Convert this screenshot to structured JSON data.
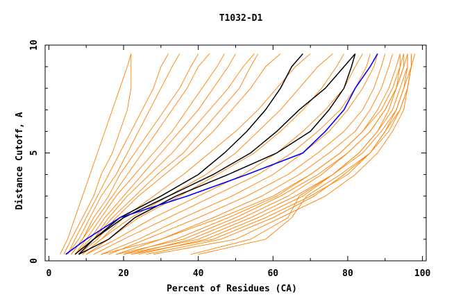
{
  "chart_data": {
    "type": "line",
    "title": "T1032-D1",
    "xlabel": "Percent of Residues (CA)",
    "ylabel": "Distance Cutoff, A",
    "xlim": [
      -1,
      101
    ],
    "ylim": [
      0,
      10
    ],
    "xticks": [
      0,
      20,
      40,
      60,
      80,
      100
    ],
    "yticks": [
      0,
      5,
      10
    ],
    "grid": false,
    "y_levels": [
      0.3,
      1,
      2,
      3,
      4,
      5,
      6,
      7,
      8,
      9,
      9.6
    ],
    "colors": {
      "other": "#ff8000",
      "highlight": "#000000",
      "best": "#0000ff"
    },
    "orange_series": [
      [
        3,
        5,
        7,
        9,
        11,
        13,
        15,
        17,
        19,
        21,
        22
      ],
      [
        4,
        6,
        9,
        12,
        14,
        17,
        19,
        21,
        22,
        22,
        22
      ],
      [
        5,
        7,
        10,
        13,
        16,
        19,
        22,
        25,
        28,
        30,
        32
      ],
      [
        5,
        8,
        11,
        14,
        18,
        21,
        24,
        27,
        30,
        33,
        35
      ],
      [
        6,
        9,
        12,
        16,
        19,
        23,
        27,
        31,
        35,
        38,
        40
      ],
      [
        6,
        9,
        13,
        17,
        21,
        25,
        29,
        33,
        37,
        40,
        43
      ],
      [
        7,
        10,
        14,
        18,
        23,
        28,
        33,
        37,
        41,
        45,
        47
      ],
      [
        7,
        11,
        15,
        20,
        25,
        30,
        35,
        40,
        44,
        48,
        50
      ],
      [
        8,
        12,
        16,
        21,
        27,
        33,
        38,
        43,
        48,
        52,
        55
      ],
      [
        8,
        12,
        17,
        23,
        29,
        36,
        41,
        46,
        51,
        54,
        56
      ],
      [
        8,
        13,
        18,
        24,
        31,
        38,
        44,
        49,
        54,
        58,
        62
      ],
      [
        9,
        14,
        20,
        28,
        36,
        43,
        50,
        56,
        61,
        66,
        70
      ],
      [
        9,
        14,
        22,
        32,
        42,
        50,
        56,
        62,
        67,
        72,
        76
      ],
      [
        10,
        16,
        24,
        35,
        45,
        55,
        62,
        68,
        73,
        77,
        79
      ],
      [
        10,
        18,
        28,
        40,
        52,
        61,
        68,
        74,
        79,
        82,
        84
      ],
      [
        12,
        20,
        32,
        44,
        56,
        65,
        72,
        78,
        82,
        85,
        86
      ],
      [
        14,
        24,
        36,
        49,
        60,
        68,
        75,
        80,
        84,
        87,
        88
      ],
      [
        16,
        26,
        40,
        53,
        64,
        72,
        79,
        84,
        87,
        89,
        90
      ],
      [
        18,
        30,
        44,
        57,
        67,
        75,
        82,
        86,
        89,
        91,
        92
      ],
      [
        20,
        34,
        48,
        61,
        70,
        78,
        84,
        88,
        91,
        93,
        94
      ],
      [
        22,
        38,
        52,
        64,
        73,
        80,
        86,
        90,
        93,
        95,
        95
      ],
      [
        24,
        42,
        56,
        68,
        76,
        83,
        88,
        92,
        94,
        96,
        96
      ],
      [
        26,
        46,
        60,
        71,
        79,
        86,
        90,
        93,
        95,
        97,
        97
      ],
      [
        28,
        50,
        62,
        74,
        82,
        88,
        92,
        95,
        96,
        97,
        98
      ],
      [
        22,
        44,
        58,
        70,
        80,
        86,
        91,
        94,
        96,
        97,
        97
      ],
      [
        38,
        54,
        64,
        67,
        76,
        84,
        89,
        93,
        95,
        96,
        96
      ],
      [
        40,
        58,
        65,
        69,
        78,
        86,
        90,
        94,
        96,
        97,
        97
      ],
      [
        20,
        40,
        54,
        66,
        76,
        83,
        88,
        91,
        93,
        95,
        96
      ],
      [
        18,
        36,
        50,
        62,
        72,
        80,
        86,
        90,
        93,
        94,
        95
      ],
      [
        14,
        30,
        46,
        60,
        70,
        78,
        84,
        89,
        92,
        94,
        94
      ]
    ],
    "black_series": [
      [
        8,
        12,
        19,
        30,
        40,
        47,
        53,
        58,
        62,
        65,
        68
      ],
      [
        7,
        12,
        20,
        32,
        44,
        54,
        61,
        67,
        74,
        79,
        82
      ],
      [
        8,
        16,
        23,
        34,
        48,
        61,
        70,
        75,
        79,
        81,
        82
      ]
    ],
    "blue_series": [
      4.5,
      10,
      19,
      37,
      53,
      68,
      74,
      79,
      82,
      86,
      88
    ]
  }
}
